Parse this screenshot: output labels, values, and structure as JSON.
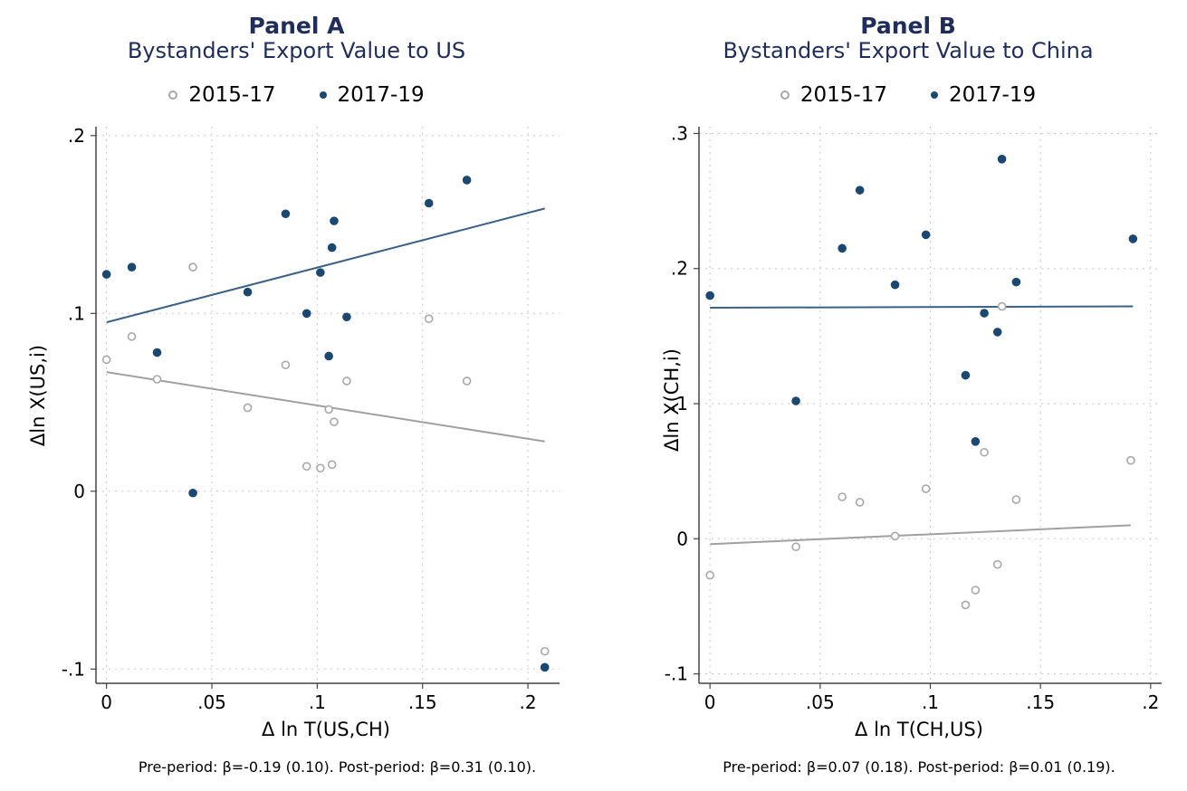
{
  "chart_data": [
    {
      "type": "scatter",
      "panel_title": "Panel A",
      "subtitle": "Bystanders' Export Value to US",
      "xlabel": "Δ ln T(US,CH)",
      "ylabel": "Δln X(US,i)",
      "xlim": [
        -0.005,
        0.215
      ],
      "ylim": [
        -0.108,
        0.205
      ],
      "xticks": [
        0,
        0.05,
        0.1,
        0.15,
        0.2
      ],
      "xtick_labels": [
        "0",
        ".05",
        ".1",
        ".15",
        ".2"
      ],
      "yticks": [
        -0.1,
        0,
        0.1,
        0.2
      ],
      "ytick_labels": [
        "-.1",
        "0",
        ".1",
        ".2"
      ],
      "grid": true,
      "legend_position": "top",
      "series": [
        {
          "name": "2015-17",
          "color": "#a8a8a8",
          "marker": "hollow-circle",
          "points": [
            [
              0,
              0.074
            ],
            [
              0.012,
              0.087
            ],
            [
              0.024,
              0.063
            ],
            [
              0.041,
              0.126
            ],
            [
              0.067,
              0.047
            ],
            [
              0.085,
              0.071
            ],
            [
              0.095,
              0.014
            ],
            [
              0.1015,
              0.013
            ],
            [
              0.1055,
              0.046
            ],
            [
              0.107,
              0.015
            ],
            [
              0.108,
              0.039
            ],
            [
              0.114,
              0.062
            ],
            [
              0.153,
              0.097
            ],
            [
              0.171,
              0.062
            ],
            [
              0.208,
              -0.09
            ]
          ],
          "fit": {
            "x": [
              0,
              0.208
            ],
            "y": [
              0.067,
              0.028
            ]
          }
        },
        {
          "name": "2017-19",
          "color": "#1a4870",
          "marker": "filled-circle",
          "points": [
            [
              0,
              0.122
            ],
            [
              0.012,
              0.126
            ],
            [
              0.024,
              0.078
            ],
            [
              0.041,
              -0.001
            ],
            [
              0.067,
              0.112
            ],
            [
              0.085,
              0.156
            ],
            [
              0.095,
              0.1
            ],
            [
              0.1015,
              0.123
            ],
            [
              0.1055,
              0.076
            ],
            [
              0.107,
              0.137
            ],
            [
              0.108,
              0.152
            ],
            [
              0.114,
              0.098
            ],
            [
              0.153,
              0.162
            ],
            [
              0.171,
              0.175
            ],
            [
              0.208,
              -0.099
            ]
          ],
          "fit": {
            "x": [
              0,
              0.208
            ],
            "y": [
              0.095,
              0.159
            ]
          }
        }
      ],
      "note": "Pre-period: β=-0.19 (0.10). Post-period: β=0.31 (0.10)."
    },
    {
      "type": "scatter",
      "panel_title": "Panel B",
      "subtitle": "Bystanders' Export Value to China",
      "xlabel": "Δ ln T(CH,US)",
      "ylabel": "Δln X(CH,i)",
      "xlim": [
        -0.005,
        0.205
      ],
      "ylim": [
        -0.107,
        0.305
      ],
      "xticks": [
        0,
        0.05,
        0.1,
        0.15,
        0.2
      ],
      "xtick_labels": [
        "0",
        ".05",
        ".1",
        ".15",
        ".2"
      ],
      "yticks": [
        -0.1,
        0,
        0.1,
        0.2,
        0.3
      ],
      "ytick_labels": [
        "-.1",
        "0",
        ".1",
        ".2",
        ".3"
      ],
      "grid": true,
      "legend_position": "top",
      "series": [
        {
          "name": "2015-17",
          "color": "#a8a8a8",
          "marker": "hollow-circle",
          "points": [
            [
              0,
              -0.027
            ],
            [
              0.039,
              -0.006
            ],
            [
              0.06,
              0.031
            ],
            [
              0.068,
              0.027
            ],
            [
              0.084,
              0.002
            ],
            [
              0.098,
              0.037
            ],
            [
              0.116,
              -0.049
            ],
            [
              0.1205,
              -0.038
            ],
            [
              0.1245,
              0.064
            ],
            [
              0.1305,
              -0.019
            ],
            [
              0.1325,
              0.172
            ],
            [
              0.139,
              0.029
            ],
            [
              0.191,
              0.058
            ]
          ],
          "fit": {
            "x": [
              0,
              0.191
            ],
            "y": [
              -0.004,
              0.01
            ]
          }
        },
        {
          "name": "2017-19",
          "color": "#1a4870",
          "marker": "filled-circle",
          "points": [
            [
              0,
              0.18
            ],
            [
              0.039,
              0.102
            ],
            [
              0.06,
              0.215
            ],
            [
              0.068,
              0.258
            ],
            [
              0.084,
              0.188
            ],
            [
              0.098,
              0.225
            ],
            [
              0.116,
              0.121
            ],
            [
              0.1205,
              0.072
            ],
            [
              0.1245,
              0.167
            ],
            [
              0.1305,
              0.153
            ],
            [
              0.1325,
              0.281
            ],
            [
              0.139,
              0.19
            ],
            [
              0.192,
              0.222
            ]
          ],
          "fit": {
            "x": [
              0,
              0.192
            ],
            "y": [
              0.171,
              0.172
            ]
          }
        }
      ],
      "note": "Pre-period: β=0.07 (0.18). Post-period: β=0.01 (0.19)."
    }
  ]
}
